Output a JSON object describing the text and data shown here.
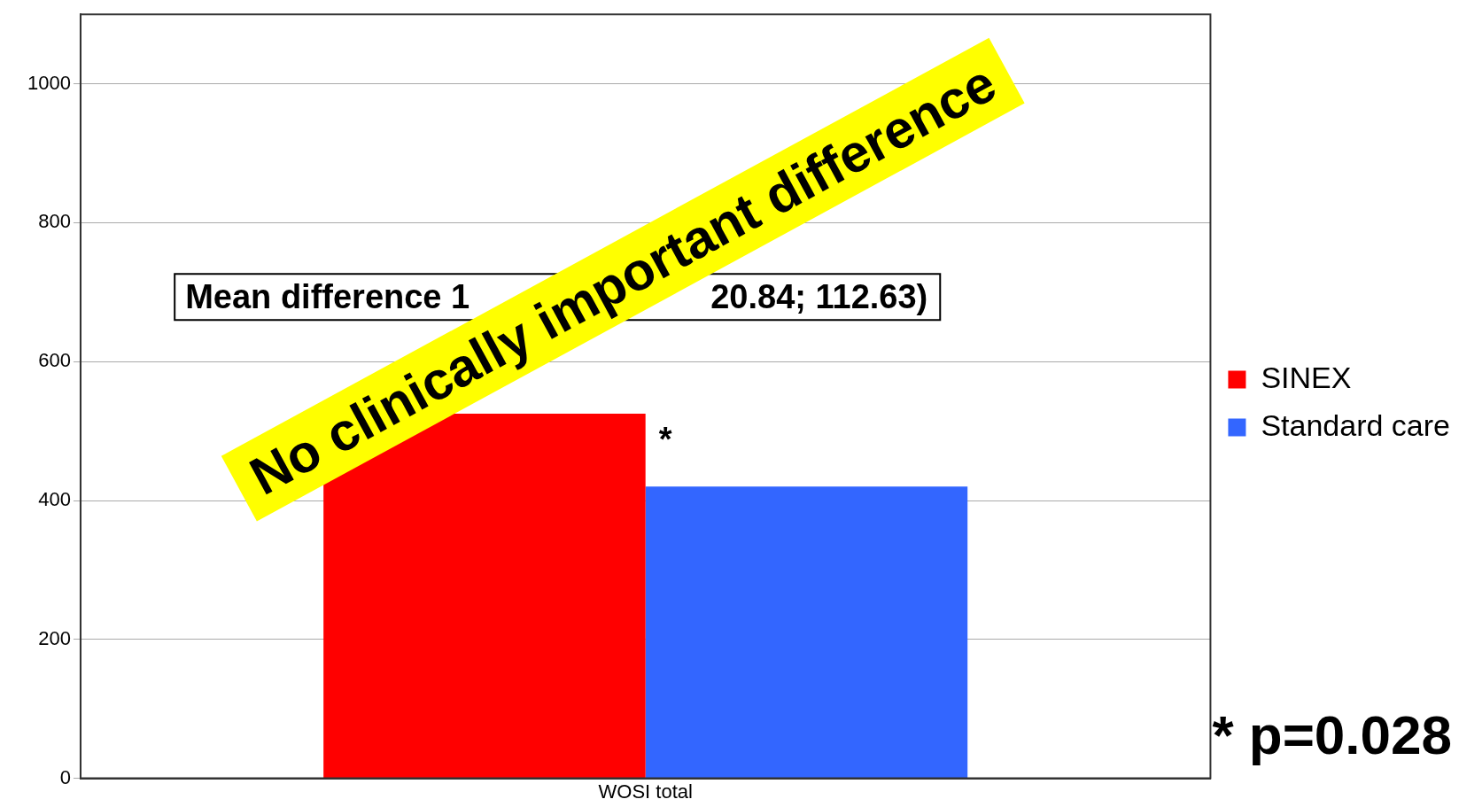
{
  "chart_data": {
    "type": "bar",
    "categories": [
      "WOSI total"
    ],
    "series": [
      {
        "name": "SINEX",
        "color": "#ff0000",
        "values": [
          525
        ]
      },
      {
        "name": "Standard care",
        "color": "#3366ff",
        "values": [
          420
        ]
      }
    ],
    "ylim": [
      0,
      1100
    ],
    "yticks": [
      0,
      200,
      400,
      600,
      800,
      1000
    ],
    "grid": "y",
    "legend": "right",
    "annotations": [
      "Mean difference 1",
      "20.84; 112.63)",
      "*",
      "* p=0.028",
      "No clinically important difference"
    ]
  }
}
